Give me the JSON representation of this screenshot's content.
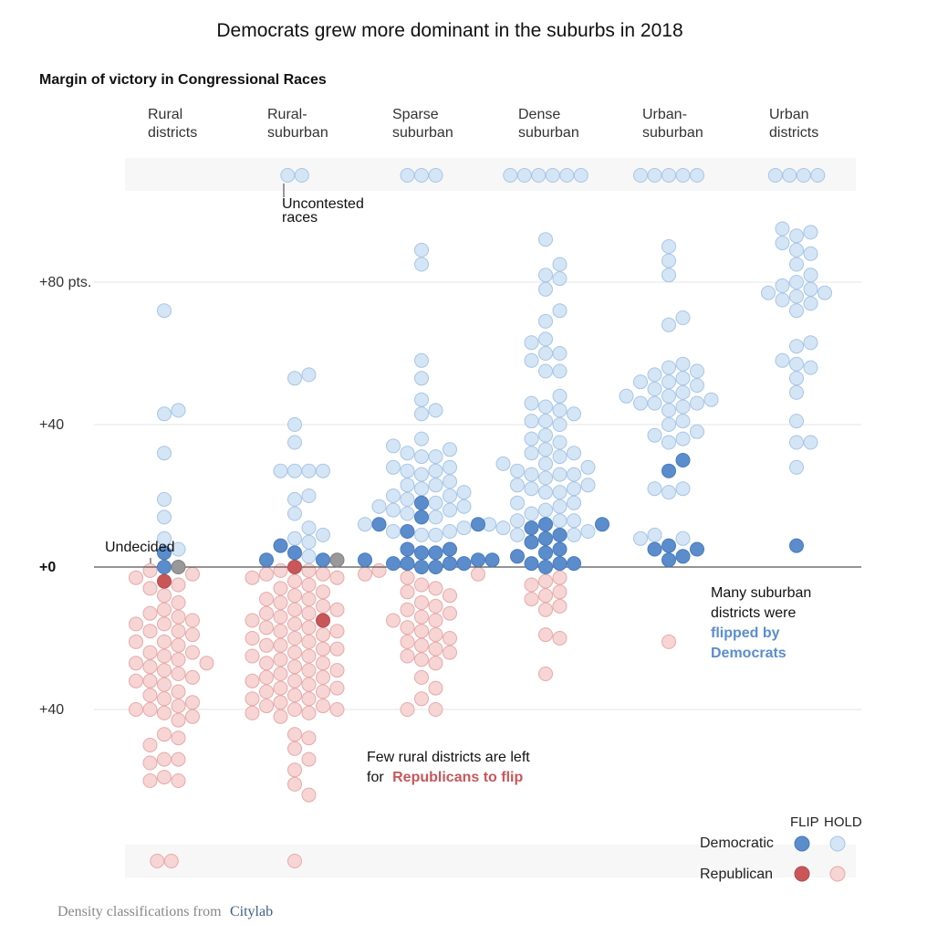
{
  "header": {
    "title": "Democrats grew more dominant in the suburbs in 2018",
    "subtitle": "Margin of victory in Congressional Races"
  },
  "colors": {
    "dem_flip": "#5b8dcd",
    "dem_hold": "#d4e5f6",
    "rep_flip": "#c9575a",
    "rep_hold": "#f6d5d4",
    "undecided": "#999999"
  },
  "annotations": {
    "undecided": "Undecided",
    "uncontested_1": "Uncontested",
    "uncontested_2": "races",
    "suburban_1": "Many suburban",
    "suburban_2": "districts were",
    "suburban_3": "flipped by",
    "suburban_4": "Democrats",
    "rural_1": "Few rural districts are left",
    "rural_2_prefix": "for",
    "rural_2_em": "Republicans to flip"
  },
  "legend": {
    "flip": "FLIP",
    "hold": "HOLD",
    "democratic": "Democratic",
    "republican": "Republican"
  },
  "source": {
    "prefix": "Density classifications from",
    "link": "Citylab"
  },
  "chart_data": {
    "type": "scatter",
    "subtype": "beeswarm",
    "y_label": "Margin of victory in Congressional Races",
    "y_unit": "pts.",
    "y_ticks": [
      {
        "value": 80,
        "label": "+80 pts."
      },
      {
        "value": 40,
        "label": "+40"
      },
      {
        "value": 0,
        "label": "+0"
      },
      {
        "value": -40,
        "label": "+40"
      }
    ],
    "ylim": [
      -50,
      100
    ],
    "categories": [
      {
        "line1": "Rural",
        "line2": "districts"
      },
      {
        "line1": "Rural-",
        "line2": "suburban"
      },
      {
        "line1": "Sparse",
        "line2": "suburban"
      },
      {
        "line1": "Dense",
        "line2": "suburban"
      },
      {
        "line1": "Urban-",
        "line2": "suburban"
      },
      {
        "line1": "Urban",
        "line2": "districts"
      }
    ],
    "uncontested": {
      "democratic": [
        0,
        2,
        3,
        6,
        5,
        4
      ],
      "republican": [
        2,
        1,
        0,
        0,
        0,
        0
      ]
    },
    "series": [
      {
        "name": "Democratic",
        "status": "FLIP",
        "margins_by_category": [
          [
            4,
            0
          ],
          [
            2,
            2,
            6,
            4
          ],
          [
            18,
            12,
            14,
            12,
            10,
            5,
            4,
            2,
            2,
            5,
            4,
            1,
            1,
            0,
            1,
            2,
            0,
            1
          ],
          [
            12,
            11,
            12,
            7,
            8,
            9,
            5,
            3,
            4,
            1,
            1,
            0,
            1
          ],
          [
            30,
            27,
            6,
            5,
            5,
            3,
            2
          ],
          [
            6
          ]
        ]
      },
      {
        "name": "Democratic",
        "status": "HOLD",
        "margins_by_category": [
          [
            72,
            44,
            43,
            32,
            19,
            14,
            8,
            5
          ],
          [
            54,
            53,
            40,
            35,
            27,
            27,
            27,
            27,
            20,
            19,
            15,
            11,
            9,
            8,
            7,
            3
          ],
          [
            89,
            85,
            58,
            53,
            47,
            44,
            43,
            36,
            34,
            33,
            32,
            31,
            31,
            28,
            28,
            27,
            27,
            26,
            24,
            23,
            23,
            22,
            21,
            20,
            20,
            19,
            18,
            17,
            17,
            16,
            16,
            15,
            14,
            12,
            11,
            10,
            10,
            9,
            9
          ],
          [
            92,
            85,
            82,
            81,
            78,
            72,
            69,
            64,
            63,
            60,
            60,
            58,
            55,
            55,
            48,
            46,
            45,
            44,
            43,
            41,
            41,
            40,
            37,
            36,
            35,
            33,
            32,
            32,
            31,
            29,
            29,
            28,
            27,
            26,
            26,
            26,
            25,
            23,
            23,
            22,
            22,
            21,
            21,
            18,
            18,
            17,
            16,
            15,
            13,
            13,
            13,
            12,
            11,
            10,
            9,
            9
          ],
          [
            90,
            86,
            82,
            70,
            68,
            57,
            56,
            55,
            54,
            53,
            52,
            52,
            51,
            50,
            49,
            48,
            48,
            47,
            46,
            46,
            46,
            45,
            44,
            41,
            40,
            38,
            37,
            36,
            35,
            22,
            22,
            21,
            9,
            8,
            8
          ],
          [
            95,
            94,
            93,
            91,
            89,
            88,
            85,
            82,
            80,
            79,
            78,
            77,
            77,
            76,
            75,
            74,
            72,
            63,
            62,
            58,
            57,
            56,
            53,
            49,
            41,
            35,
            35,
            28
          ]
        ]
      },
      {
        "name": "Republican",
        "status": "FLIP",
        "margins_by_category": [
          [
            -4
          ],
          [
            -15,
            0
          ]
        ]
      },
      {
        "name": "Republican",
        "status": "HOLD",
        "margins_by_category": [
          [
            -1,
            -2,
            -3,
            -5,
            -6,
            -8,
            -10,
            -12,
            -13,
            -14,
            -15,
            -16,
            -16,
            -18,
            -18,
            -19,
            -21,
            -21,
            -22,
            -24,
            -24,
            -25,
            -26,
            -27,
            -27,
            -28,
            -29,
            -30,
            -31,
            -32,
            -32,
            -33,
            -35,
            -36,
            -37,
            -38,
            -39,
            -40,
            -40,
            -41,
            -42,
            -43,
            -47,
            -48,
            -50,
            -54,
            -54,
            -55,
            -59,
            -60,
            -60
          ],
          [
            -1,
            -1,
            -2,
            -2,
            -3,
            -3,
            -4,
            -5,
            -6,
            -7,
            -8,
            -9,
            -9,
            -10,
            -11,
            -12,
            -12,
            -13,
            -13,
            -14,
            -15,
            -16,
            -17,
            -17,
            -18,
            -18,
            -19,
            -20,
            -20,
            -21,
            -22,
            -22,
            -23,
            -23,
            -24,
            -25,
            -25,
            -26,
            -27,
            -27,
            -28,
            -29,
            -29,
            -30,
            -31,
            -31,
            -32,
            -32,
            -33,
            -34,
            -34,
            -35,
            -35,
            -36,
            -37,
            -37,
            -38,
            -39,
            -39,
            -40,
            -40,
            -41,
            -41,
            -42,
            -47,
            -48,
            -51,
            -54,
            -57,
            -61,
            -64
          ],
          [
            -1,
            -2,
            -2,
            -3,
            -5,
            -6,
            -7,
            -8,
            -10,
            -11,
            -12,
            -13,
            -14,
            -15,
            -15,
            -17,
            -18,
            -19,
            -20,
            -21,
            -22,
            -23,
            -24,
            -25,
            -26,
            -27,
            -31,
            -34,
            -37,
            -40,
            -40
          ],
          [
            -3,
            -4,
            -5,
            -7,
            -8,
            -9,
            -11,
            -12,
            -19,
            -20,
            -30
          ],
          [
            -21
          ],
          []
        ]
      },
      {
        "name": "Undecided",
        "margins_by_category": [
          [
            0
          ],
          [
            2
          ],
          [],
          [],
          [],
          []
        ]
      }
    ]
  }
}
